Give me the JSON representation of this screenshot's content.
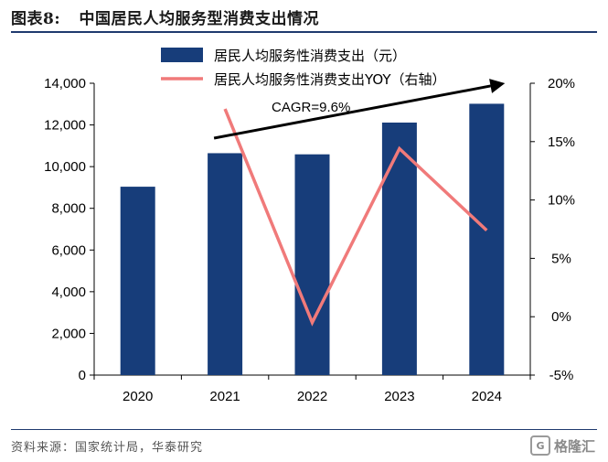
{
  "header": {
    "figure_number": "图表8:",
    "title": "中国居民人均服务型消费支出情况"
  },
  "footer": {
    "source": "资料来源：国家统计局，华泰研究",
    "logo_text": "格隆汇",
    "logo_mark": "G"
  },
  "chart_data": {
    "type": "bar",
    "categories": [
      "2020",
      "2021",
      "2022",
      "2023",
      "2024"
    ],
    "series": [
      {
        "name": "居民人均服务性消费支出（元）",
        "type": "bar",
        "axis": "left",
        "color": "#173d7a",
        "values": [
          9037,
          10645,
          10590,
          12114,
          13016
        ]
      },
      {
        "name": "居民人均服务性消费支出YOY（右轴）",
        "type": "line",
        "axis": "right",
        "color": "#f07a7a",
        "values": [
          null,
          17.8,
          -0.5,
          14.4,
          7.4
        ]
      }
    ],
    "y_left": {
      "min": 0,
      "max": 14000,
      "ticks": [
        0,
        2000,
        4000,
        6000,
        8000,
        10000,
        12000,
        14000
      ],
      "tick_labels": [
        "0",
        "2,000",
        "4,000",
        "6,000",
        "8,000",
        "10,000",
        "12,000",
        "14,000"
      ]
    },
    "y_right": {
      "min": -5,
      "max": 20,
      "ticks": [
        -5,
        0,
        5,
        10,
        15,
        20
      ],
      "tick_labels": [
        "-5%",
        "0%",
        "5%",
        "10%",
        "15%",
        "20%"
      ]
    },
    "annotation": {
      "text": "CAGR=9.6%",
      "arrow_from": {
        "x": "2021",
        "y_right": 15.3
      },
      "arrow_to": {
        "x": "2024",
        "y_right": 20.0
      }
    },
    "legend_placement": "top-center",
    "grid": false
  }
}
